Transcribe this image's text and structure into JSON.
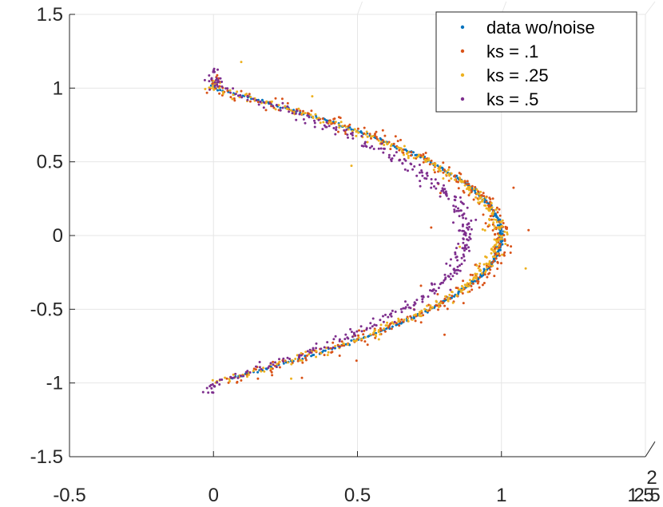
{
  "chart_data": {
    "type": "scatter",
    "title": "",
    "xlabel": "",
    "ylabel": "",
    "xlim": [
      -0.5,
      1.5
    ],
    "ylim": [
      -1.5,
      1.5
    ],
    "x_ticks": [
      {
        "value": -0.5,
        "label": "-0.5"
      },
      {
        "value": 0,
        "label": "0"
      },
      {
        "value": 0.5,
        "label": "0.5"
      },
      {
        "value": 1,
        "label": "1"
      }
    ],
    "y_ticks": [
      {
        "value": -1.5,
        "label": "-1.5"
      },
      {
        "value": -1,
        "label": "-1"
      },
      {
        "value": -0.5,
        "label": "-0.5"
      },
      {
        "value": 0,
        "label": "0"
      },
      {
        "value": 0.5,
        "label": "0.5"
      },
      {
        "value": 1,
        "label": "1"
      },
      {
        "value": 1.5,
        "label": "1.5"
      }
    ],
    "corner_tick_labels": [
      "1.5",
      "2",
      "2.5"
    ],
    "grid": true,
    "legend_position": "top-right",
    "series": [
      {
        "name": "data wo/noise",
        "color": "#0072BD",
        "x_peak": 1.0,
        "y_start": 1.04,
        "y_end": -0.97,
        "noise": 0.004,
        "outlier_rate": 0.0
      },
      {
        "name": "ks = .1",
        "color": "#D95319",
        "x_peak": 1.0,
        "y_start": 1.06,
        "y_end": -0.98,
        "noise": 0.02,
        "outlier_rate": 0.08
      },
      {
        "name": "ks = .25",
        "color": "#EDB120",
        "x_peak": 0.99,
        "y_start": 1.05,
        "y_end": -1.0,
        "noise": 0.012,
        "outlier_rate": 0.03
      },
      {
        "name": "ks = .5",
        "color": "#7E2F8E",
        "x_peak": 0.88,
        "y_start": 1.12,
        "y_end": -1.07,
        "noise": 0.015,
        "outlier_rate": 0.01
      }
    ]
  }
}
